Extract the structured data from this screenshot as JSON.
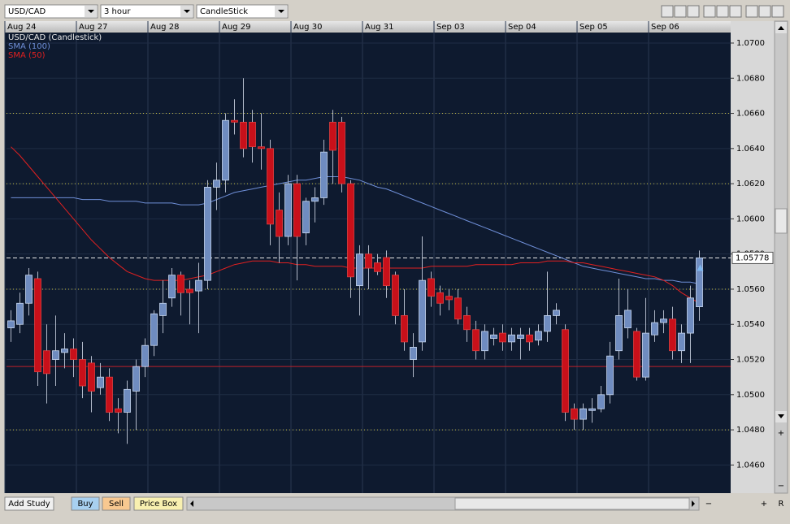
{
  "ui": {
    "symbol": "USD/CAD",
    "interval": "3 hour",
    "chart_style": "CandleStick",
    "buttons": [
      "Add Study",
      "Buy",
      "Sell",
      "Price Box"
    ],
    "vertical_controls": [
      "+",
      "−"
    ],
    "horizontal_controls": [
      "−",
      "+",
      "R"
    ]
  },
  "chart_data": {
    "type": "candlestick",
    "title": "USD/CAD (Candlestick)",
    "categories": [
      "Aug 24",
      null,
      null,
      null,
      null,
      null,
      null,
      null,
      "Aug 27",
      null,
      null,
      null,
      null,
      null,
      null,
      null,
      "Aug 28",
      null,
      null,
      null,
      null,
      null,
      null,
      null,
      "Aug 29",
      null,
      null,
      null,
      null,
      null,
      null,
      null,
      "Aug 30",
      null,
      null,
      null,
      null,
      null,
      null,
      null,
      "Aug 31",
      null,
      null,
      null,
      null,
      null,
      null,
      null,
      "Sep 03",
      null,
      null,
      null,
      null,
      null,
      null,
      null,
      "Sep 04",
      null,
      null,
      null,
      null,
      null,
      null,
      null,
      "Sep 05",
      null,
      null,
      null,
      null,
      null,
      null,
      null,
      "Sep 06",
      null,
      null,
      null,
      null,
      null
    ],
    "ohlc": [
      [
        1.0538,
        1.0548,
        1.053,
        1.0542
      ],
      [
        1.054,
        1.0558,
        1.0535,
        1.0552
      ],
      [
        1.0552,
        1.0572,
        1.0545,
        1.0568
      ],
      [
        1.0566,
        1.057,
        1.0505,
        1.0513
      ],
      [
        1.0525,
        1.054,
        1.0495,
        1.0512
      ],
      [
        1.052,
        1.0545,
        1.0505,
        1.0525
      ],
      [
        1.0524,
        1.0535,
        1.0515,
        1.0526
      ],
      [
        1.0526,
        1.0532,
        1.051,
        1.052
      ],
      [
        1.052,
        1.053,
        1.0498,
        1.0505
      ],
      [
        1.0518,
        1.0522,
        1.049,
        1.0502
      ],
      [
        1.0504,
        1.0518,
        1.05,
        1.051
      ],
      [
        1.051,
        1.0515,
        1.0485,
        1.049
      ],
      [
        1.0492,
        1.0498,
        1.0478,
        1.049
      ],
      [
        1.049,
        1.0508,
        1.0472,
        1.0503
      ],
      [
        1.0502,
        1.052,
        1.048,
        1.0516
      ],
      [
        1.0516,
        1.0532,
        1.051,
        1.0528
      ],
      [
        1.0528,
        1.0548,
        1.0522,
        1.0546
      ],
      [
        1.0545,
        1.0565,
        1.0535,
        1.0552
      ],
      [
        1.0555,
        1.0572,
        1.055,
        1.0568
      ],
      [
        1.0568,
        1.057,
        1.0545,
        1.0558
      ],
      [
        1.056,
        1.0565,
        1.054,
        1.0558
      ],
      [
        1.0559,
        1.0575,
        1.0535,
        1.0565
      ],
      [
        1.0565,
        1.0622,
        1.056,
        1.0618
      ],
      [
        1.0618,
        1.0632,
        1.0605,
        1.0622
      ],
      [
        1.0622,
        1.066,
        1.0615,
        1.0656
      ],
      [
        1.0656,
        1.0668,
        1.0648,
        1.0655
      ],
      [
        1.0655,
        1.068,
        1.0635,
        1.064
      ],
      [
        1.0655,
        1.0662,
        1.0632,
        1.0641
      ],
      [
        1.0641,
        1.066,
        1.0628,
        1.064
      ],
      [
        1.064,
        1.0645,
        1.0585,
        1.0597
      ],
      [
        1.0605,
        1.0615,
        1.0575,
        1.059
      ],
      [
        1.059,
        1.0625,
        1.0585,
        1.062
      ],
      [
        1.062,
        1.0625,
        1.0565,
        1.059
      ],
      [
        1.0592,
        1.0612,
        1.0585,
        1.061
      ],
      [
        1.061,
        1.0618,
        1.0598,
        1.0612
      ],
      [
        1.0612,
        1.0645,
        1.0608,
        1.0638
      ],
      [
        1.0655,
        1.0662,
        1.062,
        1.0639
      ],
      [
        1.0655,
        1.0658,
        1.0615,
        1.062
      ],
      [
        1.062,
        1.0622,
        1.0555,
        1.0567
      ],
      [
        1.0562,
        1.0585,
        1.0545,
        1.058
      ],
      [
        1.058,
        1.0585,
        1.056,
        1.0572
      ],
      [
        1.0575,
        1.058,
        1.0568,
        1.057
      ],
      [
        1.0578,
        1.0582,
        1.0555,
        1.0562
      ],
      [
        1.0568,
        1.057,
        1.054,
        1.0545
      ],
      [
        1.0545,
        1.056,
        1.0525,
        1.053
      ],
      [
        1.052,
        1.0535,
        1.051,
        1.0527
      ],
      [
        1.053,
        1.059,
        1.0525,
        1.0565
      ],
      [
        1.0566,
        1.057,
        1.055,
        1.0556
      ],
      [
        1.0558,
        1.0562,
        1.0545,
        1.0552
      ],
      [
        1.0556,
        1.056,
        1.0548,
        1.0554
      ],
      [
        1.0555,
        1.056,
        1.054,
        1.0543
      ],
      [
        1.0545,
        1.055,
        1.053,
        1.0537
      ],
      [
        1.0537,
        1.0542,
        1.052,
        1.0525
      ],
      [
        1.0525,
        1.054,
        1.052,
        1.0536
      ],
      [
        1.0532,
        1.0538,
        1.0528,
        1.0534
      ],
      [
        1.0535,
        1.054,
        1.0525,
        1.053
      ],
      [
        1.053,
        1.0538,
        1.0525,
        1.0534
      ],
      [
        1.0532,
        1.0538,
        1.052,
        1.0534
      ],
      [
        1.0534,
        1.0538,
        1.0525,
        1.053
      ],
      [
        1.0531,
        1.054,
        1.0528,
        1.0536
      ],
      [
        1.0536,
        1.057,
        1.053,
        1.0545
      ],
      [
        1.0545,
        1.0552,
        1.054,
        1.0548
      ],
      [
        1.0537,
        1.054,
        1.0485,
        1.049
      ],
      [
        1.0492,
        1.0495,
        1.048,
        1.0486
      ],
      [
        1.0486,
        1.0495,
        1.048,
        1.0492
      ],
      [
        1.0491,
        1.0498,
        1.0484,
        1.0492
      ],
      [
        1.0492,
        1.0505,
        1.049,
        1.05
      ],
      [
        1.05,
        1.053,
        1.0495,
        1.0522
      ],
      [
        1.0525,
        1.0566,
        1.052,
        1.0545
      ],
      [
        1.0538,
        1.056,
        1.0532,
        1.0548
      ],
      [
        1.0536,
        1.0538,
        1.0508,
        1.051
      ],
      [
        1.051,
        1.0555,
        1.0508,
        1.0535
      ],
      [
        1.0534,
        1.0548,
        1.053,
        1.0541
      ],
      [
        1.0541,
        1.0548,
        1.0535,
        1.0543
      ],
      [
        1.0543,
        1.055,
        1.052,
        1.0525
      ],
      [
        1.0525,
        1.054,
        1.0518,
        1.0535
      ],
      [
        1.0535,
        1.0562,
        1.0518,
        1.0555
      ],
      [
        1.055,
        1.0582,
        1.0542,
        1.05778
      ]
    ],
    "up_color": "#6f8cc0",
    "down_color": "#c8101a",
    "series": [
      {
        "name": "SMA (100)",
        "color": "#6f8fd8",
        "values": [
          1.0612,
          1.0612,
          1.0612,
          1.0612,
          1.0612,
          1.0612,
          1.0612,
          1.0612,
          1.0611,
          1.0611,
          1.0611,
          1.061,
          1.061,
          1.061,
          1.061,
          1.0609,
          1.0609,
          1.0609,
          1.0609,
          1.0608,
          1.0608,
          1.0608,
          1.0609,
          1.0611,
          1.0613,
          1.0615,
          1.0616,
          1.0617,
          1.0618,
          1.0619,
          1.062,
          1.0621,
          1.0622,
          1.0622,
          1.0623,
          1.0624,
          1.0624,
          1.0624,
          1.0623,
          1.0622,
          1.062,
          1.0618,
          1.0617,
          1.0615,
          1.0613,
          1.0611,
          1.0609,
          1.0607,
          1.0605,
          1.0603,
          1.0601,
          1.0599,
          1.0597,
          1.0595,
          1.0593,
          1.0591,
          1.0589,
          1.0587,
          1.0585,
          1.0583,
          1.0581,
          1.0579,
          1.0577,
          1.0575,
          1.0573,
          1.0572,
          1.0571,
          1.057,
          1.0569,
          1.0568,
          1.0567,
          1.0566,
          1.0566,
          1.0565,
          1.0565,
          1.0564,
          1.0564,
          1.0563
        ]
      },
      {
        "name": "SMA (50)",
        "color": "#e02020",
        "values": [
          1.0641,
          1.0636,
          1.063,
          1.0624,
          1.0618,
          1.0612,
          1.0606,
          1.06,
          1.0594,
          1.0588,
          1.0583,
          1.0578,
          1.0574,
          1.057,
          1.0568,
          1.0566,
          1.0565,
          1.0565,
          1.0565,
          1.0565,
          1.0566,
          1.0567,
          1.0568,
          1.057,
          1.0572,
          1.0574,
          1.0575,
          1.0576,
          1.0576,
          1.0576,
          1.0575,
          1.0575,
          1.0574,
          1.0574,
          1.0573,
          1.0573,
          1.0573,
          1.0573,
          1.0572,
          1.0572,
          1.0572,
          1.0572,
          1.0572,
          1.0572,
          1.0572,
          1.0572,
          1.0572,
          1.0573,
          1.0573,
          1.0573,
          1.0573,
          1.0573,
          1.0574,
          1.0574,
          1.0574,
          1.0574,
          1.0574,
          1.0575,
          1.0575,
          1.0575,
          1.0576,
          1.0576,
          1.0576,
          1.0575,
          1.0575,
          1.0574,
          1.0573,
          1.0572,
          1.0571,
          1.057,
          1.0569,
          1.0568,
          1.0567,
          1.0565,
          1.0562,
          1.0558,
          1.0555,
          1.0552
        ]
      }
    ],
    "ylim": [
      1.0444,
      1.0706
    ],
    "yticks": [
      {
        "value": 1.046,
        "label": "1.0460"
      },
      {
        "value": 1.048,
        "label": "1.0480"
      },
      {
        "value": 1.05,
        "label": "1.0500"
      },
      {
        "value": 1.052,
        "label": "1.0520"
      },
      {
        "value": 1.054,
        "label": "1.0540"
      },
      {
        "value": 1.056,
        "label": "1.0560"
      },
      {
        "value": 1.058,
        "label": "1.0580"
      },
      {
        "value": 1.06,
        "label": "1.0600"
      },
      {
        "value": 1.062,
        "label": "1.0620"
      },
      {
        "value": 1.064,
        "label": "1.0640"
      },
      {
        "value": 1.066,
        "label": "1.0660"
      },
      {
        "value": 1.068,
        "label": "1.0680"
      },
      {
        "value": 1.07,
        "label": "1.0700"
      }
    ],
    "last_price": 1.05778,
    "horizontal_lines": [
      {
        "value": 1.066,
        "color": "#c8c040",
        "style": "dotted"
      },
      {
        "value": 1.062,
        "color": "#c8c040",
        "style": "dotted"
      },
      {
        "value": 1.056,
        "color": "#c8c040",
        "style": "dotted"
      },
      {
        "value": 1.048,
        "color": "#c8c040",
        "style": "dotted"
      },
      {
        "value": 1.0516,
        "color": "#c0202a",
        "style": "solid"
      }
    ]
  }
}
